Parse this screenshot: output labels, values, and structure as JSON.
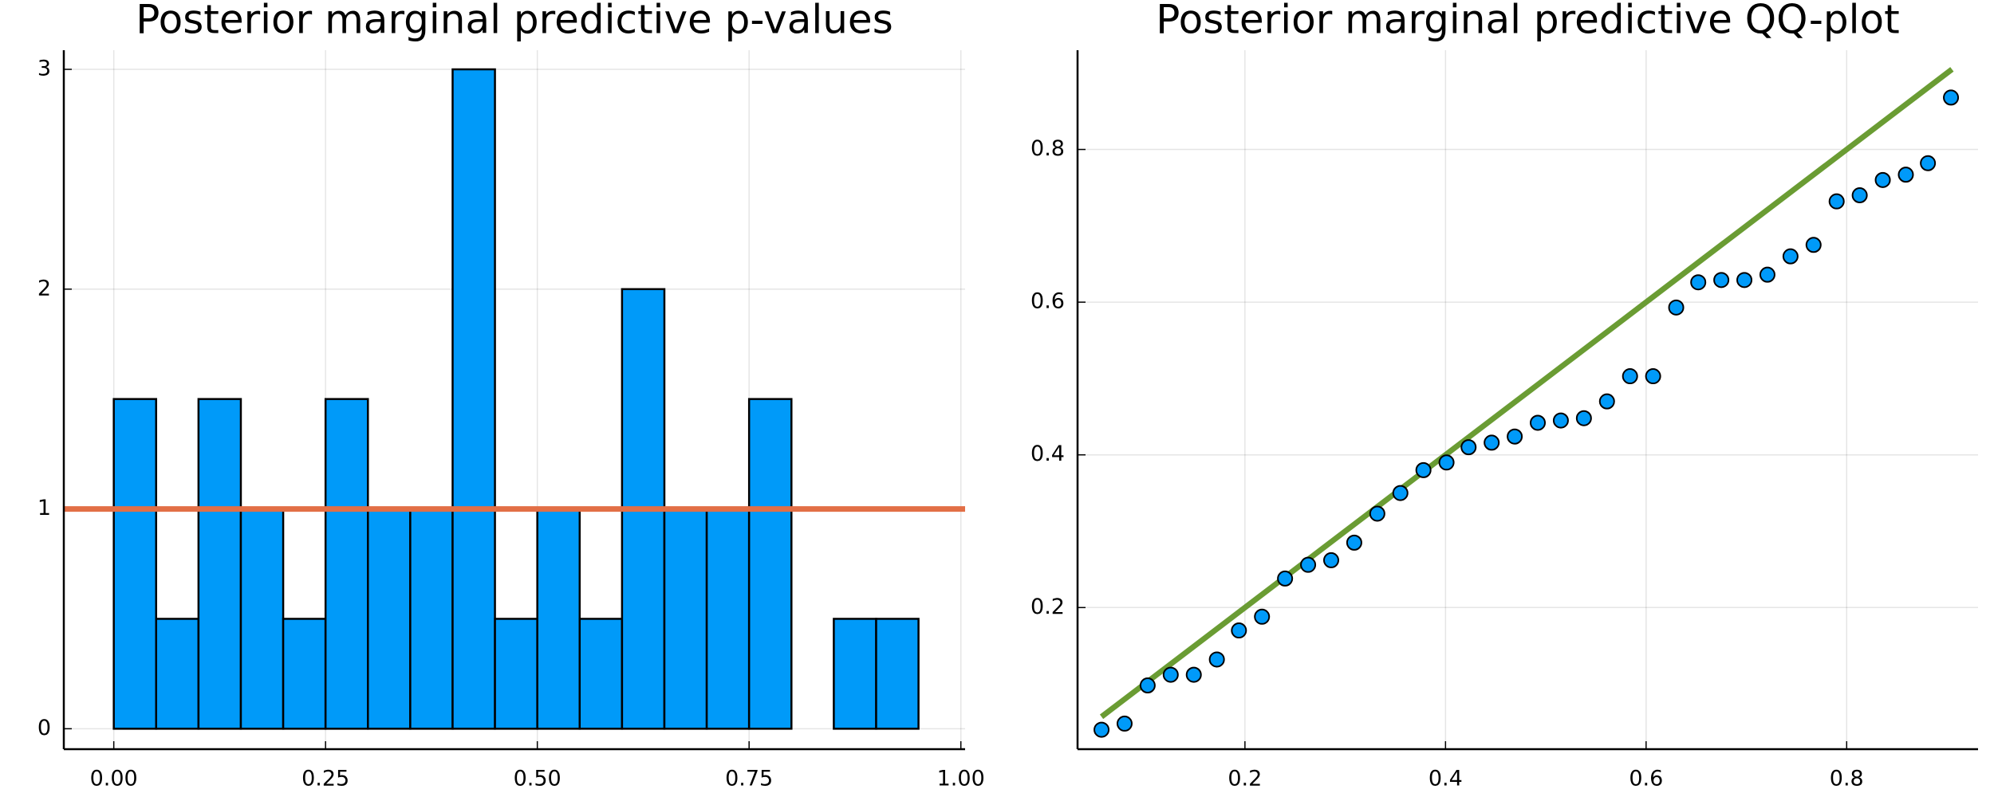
{
  "chart_data": [
    {
      "type": "histogram",
      "title": "Posterior marginal predictive p-values",
      "bins": [
        0,
        0.05,
        0.1,
        0.15,
        0.2,
        0.25,
        0.3,
        0.35,
        0.4,
        0.45,
        0.5,
        0.55,
        0.6,
        0.65,
        0.7,
        0.75,
        0.8,
        0.85,
        0.9,
        0.95
      ],
      "counts": [
        1.5,
        0.5,
        1.5,
        1,
        0.5,
        1.5,
        1,
        1,
        3,
        0.5,
        1,
        0.5,
        2,
        1,
        1,
        1.5,
        0,
        0.5,
        0.5
      ],
      "color": "#009af9",
      "hline": {
        "value": 1,
        "color": "#e26f46"
      },
      "xlim": [
        -0.059,
        1.005
      ],
      "ylim": [
        -0.093,
        3.087
      ],
      "xticks": [
        {
          "value": 0,
          "label": "0.00"
        },
        0.25,
        {
          "value": 0.5,
          "label": "0.50"
        },
        0.75,
        {
          "value": 1,
          "label": "1.00"
        }
      ],
      "yticks": [
        0,
        1,
        2,
        3
      ],
      "grid": true
    },
    {
      "type": "scatter",
      "title": "Posterior marginal predictive QQ-plot",
      "x": [
        0.057,
        0.08,
        0.103,
        0.126,
        0.149,
        0.172,
        0.194,
        0.217,
        0.24,
        0.263,
        0.286,
        0.309,
        0.332,
        0.355,
        0.378,
        0.401,
        0.423,
        0.446,
        0.469,
        0.492,
        0.515,
        0.538,
        0.561,
        0.584,
        0.607,
        0.63,
        0.652,
        0.675,
        0.698,
        0.721,
        0.744,
        0.767,
        0.79,
        0.813,
        0.836,
        0.859,
        0.881,
        0.904
      ],
      "y": [
        0.04,
        0.048,
        0.098,
        0.112,
        0.112,
        0.132,
        0.17,
        0.188,
        0.238,
        0.256,
        0.262,
        0.285,
        0.323,
        0.35,
        0.38,
        0.39,
        0.41,
        0.416,
        0.424,
        0.442,
        0.445,
        0.448,
        0.47,
        0.503,
        0.503,
        0.593,
        0.626,
        0.629,
        0.629,
        0.636,
        0.66,
        0.675,
        0.732,
        0.74,
        0.76,
        0.767,
        0.782,
        0.868
      ],
      "color": "#009af9",
      "line": {
        "x": [
          0.057,
          0.905
        ],
        "y": [
          0.057,
          0.905
        ],
        "color": "#6a9c33"
      },
      "xlim": [
        0.0331,
        0.931
      ],
      "ylim": [
        0.0145,
        0.93
      ],
      "xticks": [
        0.2,
        0.4,
        0.6,
        0.8
      ],
      "yticks": [
        0.2,
        0.4,
        0.6,
        0.8
      ],
      "grid": true
    }
  ]
}
